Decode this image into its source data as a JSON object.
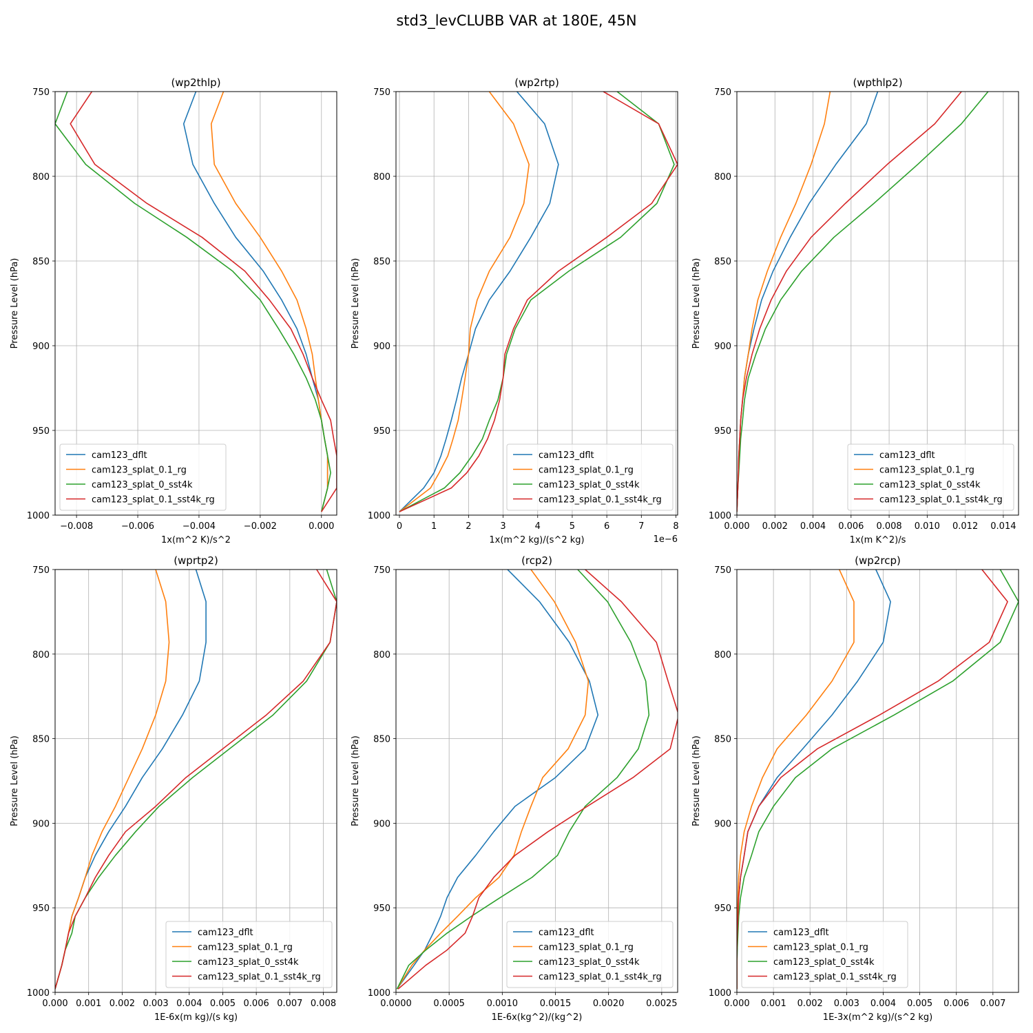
{
  "figure": {
    "title": "std3_levCLUBB VAR at 180E, 45N"
  },
  "series_names": [
    "cam123_dflt",
    "cam123_splat_0.1_rg",
    "cam123_splat_0_sst4k",
    "cam123_splat_0.1_sst4k_rg"
  ],
  "series_colors": [
    "#1f77b4",
    "#ff7f0e",
    "#2ca02c",
    "#d62728"
  ],
  "chart_data": [
    {
      "type": "line",
      "title": "(wp2thlp)",
      "xlabel": "1x(m^2 K)/s^2",
      "ylabel": "Pressure Level (hPa)",
      "offset_text": "",
      "xlim": [
        -0.0087,
        0.0005
      ],
      "ylim": [
        1000,
        750
      ],
      "xticks": [
        -0.008,
        -0.006,
        -0.004,
        -0.002,
        0.0
      ],
      "xtick_labels": [
        "−0.008",
        "−0.006",
        "−0.004",
        "−0.002",
        "0.000"
      ],
      "yticks": [
        750,
        800,
        850,
        900,
        950,
        1000
      ],
      "ytick_labels": [
        "750",
        "800",
        "850",
        "900",
        "950",
        "1000"
      ],
      "grid": true,
      "legend": "lower-left",
      "pressure": [
        750,
        769,
        793,
        816,
        836,
        856,
        873,
        890,
        905,
        919,
        932,
        944,
        955,
        965,
        975,
        984,
        998
      ],
      "series": [
        {
          "name": "cam123_dflt",
          "x": [
            -0.0041,
            -0.0045,
            -0.0042,
            -0.0035,
            -0.0028,
            -0.0019,
            -0.0013,
            -0.0008,
            -0.0005,
            -0.0003,
            -0.0001,
            0.0,
            0.0001,
            0.0002,
            0.0002,
            0.0002,
            0.0
          ]
        },
        {
          "name": "cam123_splat_0.1_rg",
          "x": [
            -0.0032,
            -0.0036,
            -0.0035,
            -0.0028,
            -0.002,
            -0.0013,
            -0.0008,
            -0.0005,
            -0.0003,
            -0.0002,
            -0.0001,
            0.0,
            0.0001,
            0.0002,
            0.0002,
            0.0002,
            0.0
          ]
        },
        {
          "name": "cam123_splat_0_sst4k",
          "x": [
            -0.0083,
            -0.0087,
            -0.0077,
            -0.0061,
            -0.0044,
            -0.0029,
            -0.002,
            -0.0014,
            -0.0009,
            -0.0005,
            -0.0002,
            0.0,
            0.0001,
            0.0002,
            0.0003,
            0.0002,
            0.0
          ]
        },
        {
          "name": "cam123_splat_0.1_sst4k_rg",
          "x": [
            -0.0075,
            -0.0082,
            -0.0074,
            -0.0057,
            -0.0039,
            -0.0025,
            -0.0017,
            -0.001,
            -0.0006,
            -0.0003,
            0.0,
            0.0003,
            0.0004,
            0.0005,
            0.0005,
            0.0005,
            0.0
          ]
        }
      ]
    },
    {
      "type": "line",
      "title": "(wp2rtp)",
      "xlabel": "1x(m^2 kg)/(s^2 kg)",
      "ylabel": "Pressure Level (hPa)",
      "offset_text": "1e−6",
      "xlim": [
        -0.1,
        8.05
      ],
      "ylim": [
        1000,
        750
      ],
      "xticks": [
        0,
        1,
        2,
        3,
        4,
        5,
        6,
        7,
        8
      ],
      "xtick_labels": [
        "0",
        "1",
        "2",
        "3",
        "4",
        "5",
        "6",
        "7",
        "8"
      ],
      "yticks": [
        750,
        800,
        850,
        900,
        950,
        1000
      ],
      "ytick_labels": [
        "750",
        "800",
        "850",
        "900",
        "950",
        "1000"
      ],
      "grid": true,
      "legend": "lower-right",
      "pressure": [
        750,
        769,
        793,
        816,
        836,
        856,
        873,
        890,
        905,
        919,
        932,
        944,
        955,
        965,
        975,
        984,
        998
      ],
      "series": [
        {
          "name": "cam123_dflt",
          "x": [
            3.4,
            4.2,
            4.6,
            4.35,
            3.8,
            3.2,
            2.6,
            2.2,
            2.0,
            1.8,
            1.65,
            1.5,
            1.35,
            1.2,
            1.0,
            0.7,
            0.0
          ]
        },
        {
          "name": "cam123_splat_0.1_rg",
          "x": [
            2.6,
            3.3,
            3.75,
            3.6,
            3.2,
            2.6,
            2.25,
            2.05,
            2.0,
            1.9,
            1.8,
            1.7,
            1.55,
            1.4,
            1.15,
            0.9,
            0.0
          ]
        },
        {
          "name": "cam123_splat_0_sst4k",
          "x": [
            6.3,
            7.5,
            7.95,
            7.45,
            6.4,
            4.9,
            3.8,
            3.35,
            3.1,
            3.0,
            2.85,
            2.6,
            2.4,
            2.1,
            1.75,
            1.3,
            0.0
          ]
        },
        {
          "name": "cam123_splat_0.1_sst4k_rg",
          "x": [
            5.9,
            7.5,
            8.05,
            7.3,
            6.0,
            4.6,
            3.7,
            3.3,
            3.05,
            3.0,
            2.9,
            2.75,
            2.55,
            2.3,
            1.95,
            1.5,
            0.0
          ]
        }
      ]
    },
    {
      "type": "line",
      "title": "(wpthlp2)",
      "xlabel": "1x(m K^2)/s",
      "ylabel": "Pressure Level (hPa)",
      "offset_text": "",
      "xlim": [
        0.0,
        0.0148
      ],
      "ylim": [
        1000,
        750
      ],
      "xticks": [
        0.0,
        0.002,
        0.004,
        0.006,
        0.008,
        0.01,
        0.012,
        0.014
      ],
      "xtick_labels": [
        "0.000",
        "0.002",
        "0.004",
        "0.006",
        "0.008",
        "0.010",
        "0.012",
        "0.014"
      ],
      "yticks": [
        750,
        800,
        850,
        900,
        950,
        1000
      ],
      "ytick_labels": [
        "750",
        "800",
        "850",
        "900",
        "950",
        "1000"
      ],
      "grid": true,
      "legend": "lower-right",
      "pressure": [
        750,
        769,
        793,
        816,
        836,
        856,
        873,
        890,
        905,
        919,
        932,
        944,
        955,
        965,
        975,
        984,
        998
      ],
      "series": [
        {
          "name": "cam123_dflt",
          "x": [
            0.0074,
            0.0068,
            0.0052,
            0.0038,
            0.0028,
            0.0019,
            0.0013,
            0.0009,
            0.0006,
            0.0004,
            0.0003,
            0.0002,
            0.00015,
            0.0001,
            8e-05,
            5e-05,
            0.0
          ]
        },
        {
          "name": "cam123_splat_0.1_rg",
          "x": [
            0.0049,
            0.0046,
            0.0039,
            0.0031,
            0.0023,
            0.0016,
            0.0011,
            0.0008,
            0.0006,
            0.0004,
            0.0003,
            0.0002,
            0.00015,
            0.0001,
            8e-05,
            5e-05,
            0.0
          ]
        },
        {
          "name": "cam123_splat_0_sst4k",
          "x": [
            0.0132,
            0.0118,
            0.0095,
            0.0072,
            0.0051,
            0.0034,
            0.0023,
            0.0015,
            0.001,
            0.0006,
            0.0004,
            0.0003,
            0.0002,
            0.00015,
            0.0001,
            5e-05,
            0.0
          ]
        },
        {
          "name": "cam123_splat_0.1_sst4k_rg",
          "x": [
            0.0118,
            0.0104,
            0.0079,
            0.0057,
            0.0039,
            0.0026,
            0.0018,
            0.0012,
            0.0008,
            0.0005,
            0.0003,
            0.0002,
            0.00015,
            0.0001,
            8e-05,
            5e-05,
            0.0
          ]
        }
      ]
    },
    {
      "type": "line",
      "title": "(wprtp2)",
      "xlabel": "1E-6x(m kg)/(s kg)",
      "ylabel": "Pressure Level (hPa)",
      "offset_text": "",
      "xlim": [
        0.0,
        0.0084
      ],
      "ylim": [
        1000,
        750
      ],
      "xticks": [
        0.0,
        0.001,
        0.002,
        0.003,
        0.004,
        0.005,
        0.006,
        0.007,
        0.008
      ],
      "xtick_labels": [
        "0.000",
        "0.001",
        "0.002",
        "0.003",
        "0.004",
        "0.005",
        "0.006",
        "0.007",
        "0.008"
      ],
      "yticks": [
        750,
        800,
        850,
        900,
        950,
        1000
      ],
      "ytick_labels": [
        "750",
        "800",
        "850",
        "900",
        "950",
        "1000"
      ],
      "grid": true,
      "legend": "lower-right",
      "pressure": [
        750,
        769,
        793,
        816,
        836,
        856,
        873,
        890,
        905,
        919,
        932,
        944,
        955,
        965,
        975,
        984,
        998
      ],
      "series": [
        {
          "name": "cam123_dflt",
          "x": [
            0.0042,
            0.0045,
            0.0045,
            0.0043,
            0.0038,
            0.0032,
            0.0026,
            0.0021,
            0.0016,
            0.0012,
            0.0009,
            0.0007,
            0.0005,
            0.0004,
            0.0003,
            0.0002,
            0.0
          ]
        },
        {
          "name": "cam123_splat_0.1_rg",
          "x": [
            0.003,
            0.0033,
            0.0034,
            0.0033,
            0.003,
            0.0026,
            0.0022,
            0.0018,
            0.0014,
            0.0011,
            0.0009,
            0.0007,
            0.0005,
            0.0004,
            0.0003,
            0.0002,
            0.0
          ]
        },
        {
          "name": "cam123_splat_0_sst4k",
          "x": [
            0.0081,
            0.0084,
            0.0082,
            0.0075,
            0.0065,
            0.0052,
            0.0041,
            0.0031,
            0.0024,
            0.0018,
            0.0013,
            0.0009,
            0.0006,
            0.0005,
            0.0003,
            0.0002,
            0.0
          ]
        },
        {
          "name": "cam123_splat_0.1_sst4k_rg",
          "x": [
            0.0078,
            0.0084,
            0.0082,
            0.0074,
            0.0063,
            0.005,
            0.0039,
            0.003,
            0.0021,
            0.0016,
            0.0012,
            0.0009,
            0.0006,
            0.0004,
            0.0003,
            0.0002,
            0.0
          ]
        }
      ]
    },
    {
      "type": "line",
      "title": "(rcp2)",
      "xlabel": "1E-6x(kg^2)/(kg^2)",
      "ylabel": "Pressure Level (hPa)",
      "offset_text": "",
      "xlim": [
        0.0,
        0.00265
      ],
      "ylim": [
        1000,
        750
      ],
      "xticks": [
        0.0,
        0.0005,
        0.001,
        0.0015,
        0.002,
        0.0025
      ],
      "xtick_labels": [
        "0.0000",
        "0.0005",
        "0.0010",
        "0.0015",
        "0.0020",
        "0.0025"
      ],
      "yticks": [
        750,
        800,
        850,
        900,
        950,
        1000
      ],
      "ytick_labels": [
        "750",
        "800",
        "850",
        "900",
        "950",
        "1000"
      ],
      "grid": true,
      "legend": "lower-right",
      "pressure": [
        750,
        769,
        793,
        816,
        836,
        856,
        873,
        890,
        905,
        919,
        932,
        944,
        955,
        965,
        975,
        984,
        998
      ],
      "series": [
        {
          "name": "cam123_dflt",
          "x": [
            0.00105,
            0.00135,
            0.00163,
            0.00182,
            0.0019,
            0.00178,
            0.0015,
            0.00112,
            0.00092,
            0.00075,
            0.00058,
            0.00048,
            0.00042,
            0.00035,
            0.00027,
            0.00017,
            1e-05
          ]
        },
        {
          "name": "cam123_splat_0.1_rg",
          "x": [
            0.00127,
            0.00149,
            0.00169,
            0.00181,
            0.00178,
            0.00162,
            0.00138,
            0.00127,
            0.00118,
            0.00111,
            0.00097,
            0.00075,
            0.00058,
            0.00042,
            0.00027,
            0.00015,
            1e-05
          ]
        },
        {
          "name": "cam123_splat_0_sst4k",
          "x": [
            0.00171,
            0.00199,
            0.00221,
            0.00235,
            0.00238,
            0.00228,
            0.00208,
            0.00178,
            0.00163,
            0.00152,
            0.00128,
            0.00098,
            0.00071,
            0.00048,
            0.00028,
            0.00012,
            1e-05
          ]
        },
        {
          "name": "cam123_splat_0.1_sst4k_rg",
          "x": [
            0.00178,
            0.00212,
            0.00245,
            0.00256,
            0.00266,
            0.00258,
            0.00223,
            0.0018,
            0.00143,
            0.00112,
            0.00092,
            0.00078,
            0.00072,
            0.00065,
            0.00048,
            0.00028,
            2e-05
          ]
        }
      ]
    },
    {
      "type": "line",
      "title": "(wp2rcp)",
      "xlabel": "1E-3x(m^2 kg)/(s^2 kg)",
      "ylabel": "Pressure Level (hPa)",
      "offset_text": "",
      "xlim": [
        0.0,
        0.0077
      ],
      "ylim": [
        1000,
        750
      ],
      "xticks": [
        0.0,
        0.001,
        0.002,
        0.003,
        0.004,
        0.005,
        0.006,
        0.007
      ],
      "xtick_labels": [
        "0.000",
        "0.001",
        "0.002",
        "0.003",
        "0.004",
        "0.005",
        "0.006",
        "0.007"
      ],
      "yticks": [
        750,
        800,
        850,
        900,
        950,
        1000
      ],
      "ytick_labels": [
        "750",
        "800",
        "850",
        "900",
        "950",
        "1000"
      ],
      "grid": true,
      "legend": "lower-left",
      "pressure": [
        750,
        769,
        793,
        816,
        836,
        856,
        873,
        890,
        905,
        919,
        932,
        944,
        955,
        965,
        975,
        984,
        998
      ],
      "series": [
        {
          "name": "cam123_dflt",
          "x": [
            0.0038,
            0.0042,
            0.004,
            0.0033,
            0.0026,
            0.0018,
            0.0011,
            0.0006,
            0.0003,
            0.0002,
            0.0001,
            5e-05,
            3e-05,
            2e-05,
            1e-05,
            0.0,
            0.0
          ]
        },
        {
          "name": "cam123_splat_0.1_rg",
          "x": [
            0.0028,
            0.0032,
            0.0032,
            0.0026,
            0.0019,
            0.0011,
            0.0007,
            0.0004,
            0.0002,
            0.0001,
            5e-05,
            3e-05,
            2e-05,
            1e-05,
            0.0,
            0.0,
            0.0
          ]
        },
        {
          "name": "cam123_splat_0_sst4k",
          "x": [
            0.0072,
            0.0077,
            0.0072,
            0.0059,
            0.0043,
            0.0026,
            0.0016,
            0.001,
            0.0006,
            0.0004,
            0.0002,
            0.0001,
            5e-05,
            3e-05,
            1e-05,
            0.0,
            0.0
          ]
        },
        {
          "name": "cam123_splat_0.1_sst4k_rg",
          "x": [
            0.0067,
            0.0074,
            0.0069,
            0.0055,
            0.0039,
            0.0022,
            0.0012,
            0.0006,
            0.0003,
            0.0002,
            0.0001,
            5e-05,
            3e-05,
            1e-05,
            0.0,
            0.0,
            0.0
          ]
        }
      ]
    }
  ]
}
